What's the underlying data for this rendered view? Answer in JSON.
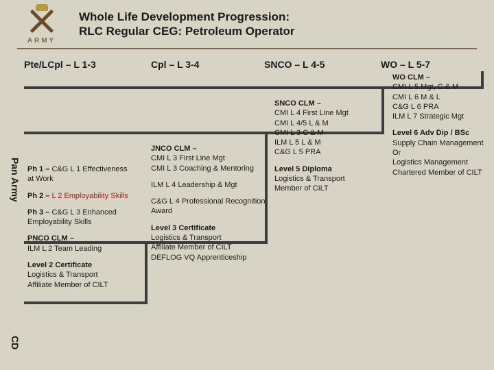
{
  "logo": {
    "text": "ARMY"
  },
  "title": {
    "line1": "Whole Life Development Progression:",
    "line2": "RLC Regular CEG: Petroleum Operator"
  },
  "side": {
    "pan": "Pan Army",
    "cd": "CD"
  },
  "columns": {
    "h1": "Pte/LCpl – L 1-3",
    "h2": "Cpl – L 3-4",
    "h3": "SNCO – L 4-5",
    "h4": "WO – L 5-7"
  },
  "col1": {
    "ph1_lead": "Ph 1 – ",
    "ph1": "C&G L 1 Effectiveness at Work",
    "ph2_lead": "Ph 2 – ",
    "ph2_red": "L 2 Employability Skills",
    "ph3_lead": "Ph 3 – ",
    "ph3": "C&G L 3 Enhanced Employability Skills",
    "pnco_lead": "PNCO CLM –",
    "pnco": "ILM L 2 Team Leading",
    "cert_lead": "Level 2 Certificate",
    "cert1": "Logistics & Transport",
    "cert2": "Affiliate Member of CILT"
  },
  "col2": {
    "jnco_lead": "JNCO CLM –",
    "jnco1": "CMI L 3 First Line Mgt",
    "jnco2": "CMI L 3 Coaching & Mentoring",
    "ilm": "ILM L 4 Leadership & Mgt",
    "cgl4": "C&G L 4 Professional Recognition Award",
    "cert_lead": "Level 3 Certificate",
    "cert1": "Logistics & Transport",
    "cert2": "Affiliate Member of CILT",
    "cert3": "DEFLOG VQ Apprenticeship"
  },
  "col3": {
    "snco_lead": "SNCO CLM –",
    "s1": "CMI L 4 First Line Mgt",
    "s2": "CMI L 4/5 L & M",
    "s3": "CMI L 3 C & M",
    "s4": "ILM L 5 L & M",
    "s5": "C&G L 5 PRA",
    "dip_lead": "Level 5 Diploma",
    "dip1": "Logistics & Transport",
    "dip2": "Member of CILT"
  },
  "col4": {
    "wo_lead": "WO CLM –",
    "w1": "CMI L 5 Mgt, C & M",
    "w2": "CMI L 6 M & L",
    "w3": "C&G L 6 PRA",
    "w4": "ILM L 7 Strategic Mgt",
    "adv_lead": "Level 6 Adv Dip / BSc",
    "a1": "Supply Chain Management",
    "a2": "Or",
    "a3": "Logistics Management",
    "a4": "Chartered Member of CILT"
  },
  "colors": {
    "bg": "#d8d4c5",
    "rule": "#7a6c4d",
    "box_border": "#3d3d3d",
    "accent_red": "#b01818"
  }
}
